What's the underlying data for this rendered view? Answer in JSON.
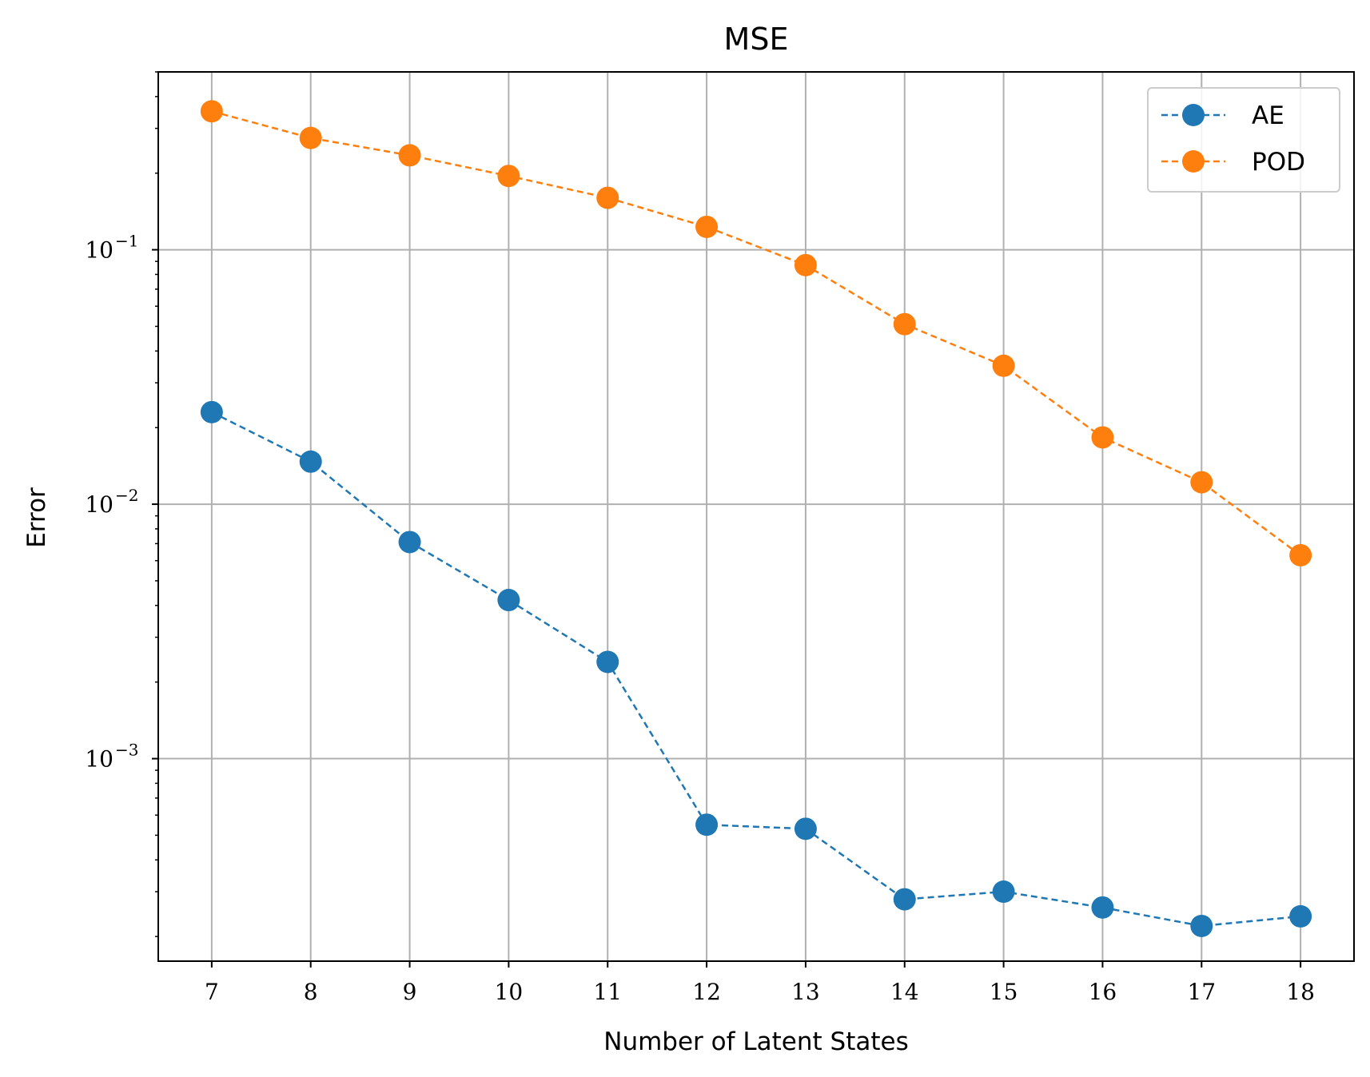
{
  "chart_data": {
    "type": "line",
    "title": "MSE",
    "xlabel": "Number of Latent States",
    "ylabel": "Error",
    "yscale": "log",
    "ylim": [
      0.00016,
      0.5
    ],
    "grid": true,
    "legend_placement": "top-right",
    "x": [
      7,
      8,
      9,
      10,
      11,
      12,
      13,
      14,
      15,
      16,
      17,
      18
    ],
    "y_ticks": [
      {
        "value": 0.1,
        "base": "10",
        "exp": "−1"
      },
      {
        "value": 0.01,
        "base": "10",
        "exp": "−2"
      },
      {
        "value": 0.001,
        "base": "10",
        "exp": "−3"
      }
    ],
    "series": [
      {
        "name": "AE",
        "color": "#1f77b4",
        "marker": "circle",
        "linestyle": "dashed",
        "values": [
          0.023,
          0.0147,
          0.0071,
          0.0042,
          0.0024,
          0.00055,
          0.00053,
          0.00028,
          0.0003,
          0.00026,
          0.00022,
          0.00024
        ]
      },
      {
        "name": "POD",
        "color": "#ff7f0e",
        "marker": "circle",
        "linestyle": "dashed",
        "values": [
          0.35,
          0.275,
          0.235,
          0.195,
          0.16,
          0.123,
          0.087,
          0.051,
          0.035,
          0.0183,
          0.0122,
          0.0063
        ]
      }
    ]
  }
}
